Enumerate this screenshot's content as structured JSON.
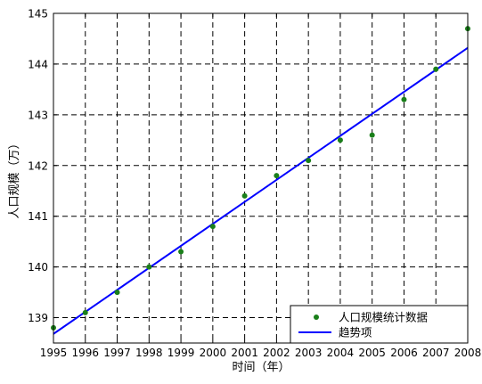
{
  "chart_data": {
    "type": "scatter",
    "x": [
      1995,
      1996,
      1997,
      1998,
      1999,
      2000,
      2001,
      2002,
      2003,
      2004,
      2005,
      2006,
      2007,
      2008
    ],
    "xlabel": "时间（年）",
    "ylabel": "人口规模（万）",
    "xlim": [
      1995,
      2008
    ],
    "ylim": [
      138.5,
      145
    ],
    "x_ticks": [
      "1995",
      "1996",
      "1997",
      "1998",
      "1999",
      "2000",
      "2001",
      "2002",
      "2003",
      "2004",
      "2005",
      "2006",
      "2007",
      "2008"
    ],
    "y_ticks": [
      "139",
      "140",
      "141",
      "142",
      "143",
      "144",
      "145"
    ],
    "grid": "dashed",
    "legend_position": "bottom-right",
    "series": [
      {
        "name": "人口规模统计数据",
        "kind": "scatter",
        "color": "#1a7f1a",
        "x": [
          1995,
          1996,
          1997,
          1998,
          1999,
          2000,
          2001,
          2002,
          2003,
          2004,
          2005,
          2006,
          2007,
          2008
        ],
        "values": [
          138.8,
          139.1,
          139.5,
          140.0,
          140.3,
          140.8,
          141.4,
          141.8,
          142.1,
          142.5,
          142.6,
          143.3,
          143.9,
          144.7
        ]
      },
      {
        "name": "趋势项",
        "kind": "line",
        "color": "#0000ff",
        "x": [
          1995,
          2008
        ],
        "values": [
          138.68,
          144.32
        ]
      }
    ]
  }
}
